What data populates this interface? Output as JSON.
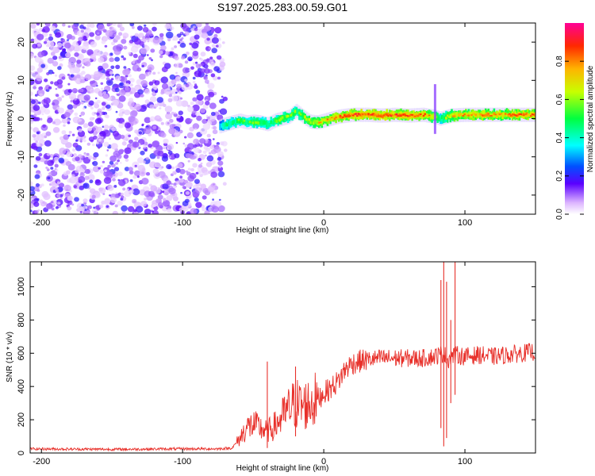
{
  "chart_data": [
    {
      "type": "heatmap",
      "title": "S197.2025.283.00.59.G01",
      "xlabel": "Height of straight line (km)",
      "ylabel": "Frequency (Hz)",
      "xlim": [
        -208,
        150
      ],
      "ylim": [
        -25,
        25
      ],
      "xticks": [
        -200,
        -100,
        0,
        100
      ],
      "yticks": [
        -20,
        -10,
        0,
        10,
        20
      ],
      "noise_region_x": [
        -208,
        -72
      ],
      "ridge_x": [
        -74,
        -70,
        -65,
        -60,
        -55,
        -50,
        -45,
        -40,
        -35,
        -30,
        -25,
        -20,
        -15,
        -10,
        -5,
        0,
        5,
        10,
        20,
        30,
        40,
        50,
        60,
        70,
        78,
        82,
        90,
        100,
        110,
        120,
        130,
        140,
        150
      ],
      "ridge_freq": [
        -2,
        -1.5,
        -1,
        -0.5,
        -1,
        -0.8,
        -1,
        -1.5,
        -0.5,
        0,
        0.5,
        2,
        0.5,
        -0.8,
        -1,
        -0.5,
        0,
        0.5,
        1,
        1,
        0.8,
        1,
        0.8,
        1,
        0.5,
        0,
        0.8,
        1,
        1,
        1,
        1,
        1,
        1
      ],
      "ridge_amplitude": [
        0.35,
        0.5,
        0.45,
        0.55,
        0.5,
        0.55,
        0.5,
        0.5,
        0.55,
        0.6,
        0.6,
        0.55,
        0.6,
        0.65,
        0.7,
        0.75,
        0.8,
        0.85,
        0.9,
        0.9,
        0.9,
        0.9,
        0.9,
        0.85,
        0.7,
        0.5,
        0.75,
        0.8,
        0.8,
        0.8,
        0.8,
        0.85,
        0.85
      ],
      "colorbar": {
        "label": "Normalized spectral amplitude",
        "range": [
          0,
          1
        ],
        "ticks": [
          "0.0",
          "0.2",
          "0.4",
          "0.6",
          "0.8"
        ]
      }
    },
    {
      "type": "line",
      "xlabel": "Height of straight line (km)",
      "ylabel": "SNR (10 * v/v)",
      "xlim": [
        -208,
        150
      ],
      "ylim": [
        0,
        1150
      ],
      "xticks": [
        -200,
        -100,
        0,
        100
      ],
      "yticks": [
        0,
        200,
        400,
        600,
        800,
        1000
      ],
      "color": "#e8302a",
      "series": [
        {
          "name": "SNR",
          "x": [
            -208,
            -150,
            -100,
            -75,
            -65,
            -60,
            -55,
            -50,
            -45,
            -40,
            -35,
            -30,
            -25,
            -20,
            -15,
            -10,
            -5,
            0,
            5,
            10,
            15,
            20,
            30,
            40,
            50,
            60,
            70,
            78,
            82,
            85,
            88,
            90,
            95,
            100,
            110,
            120,
            130,
            140,
            150
          ],
          "y": [
            25,
            22,
            25,
            25,
            30,
            80,
            150,
            170,
            150,
            130,
            160,
            210,
            260,
            300,
            280,
            300,
            320,
            360,
            390,
            430,
            500,
            540,
            560,
            570,
            570,
            570,
            570,
            580,
            590,
            600,
            560,
            580,
            590,
            580,
            590,
            580,
            590,
            600,
            610
          ]
        }
      ],
      "spikes": [
        {
          "x": -40,
          "min": 30,
          "max": 550
        },
        {
          "x": -20,
          "min": 100,
          "max": 520
        },
        {
          "x": 83,
          "min": 150,
          "max": 1040
        },
        {
          "x": 85,
          "min": 40,
          "max": 1150
        },
        {
          "x": 87,
          "min": 90,
          "max": 1030
        },
        {
          "x": 90,
          "min": 300,
          "max": 800
        },
        {
          "x": 93,
          "min": 350,
          "max": 1150
        }
      ]
    }
  ]
}
